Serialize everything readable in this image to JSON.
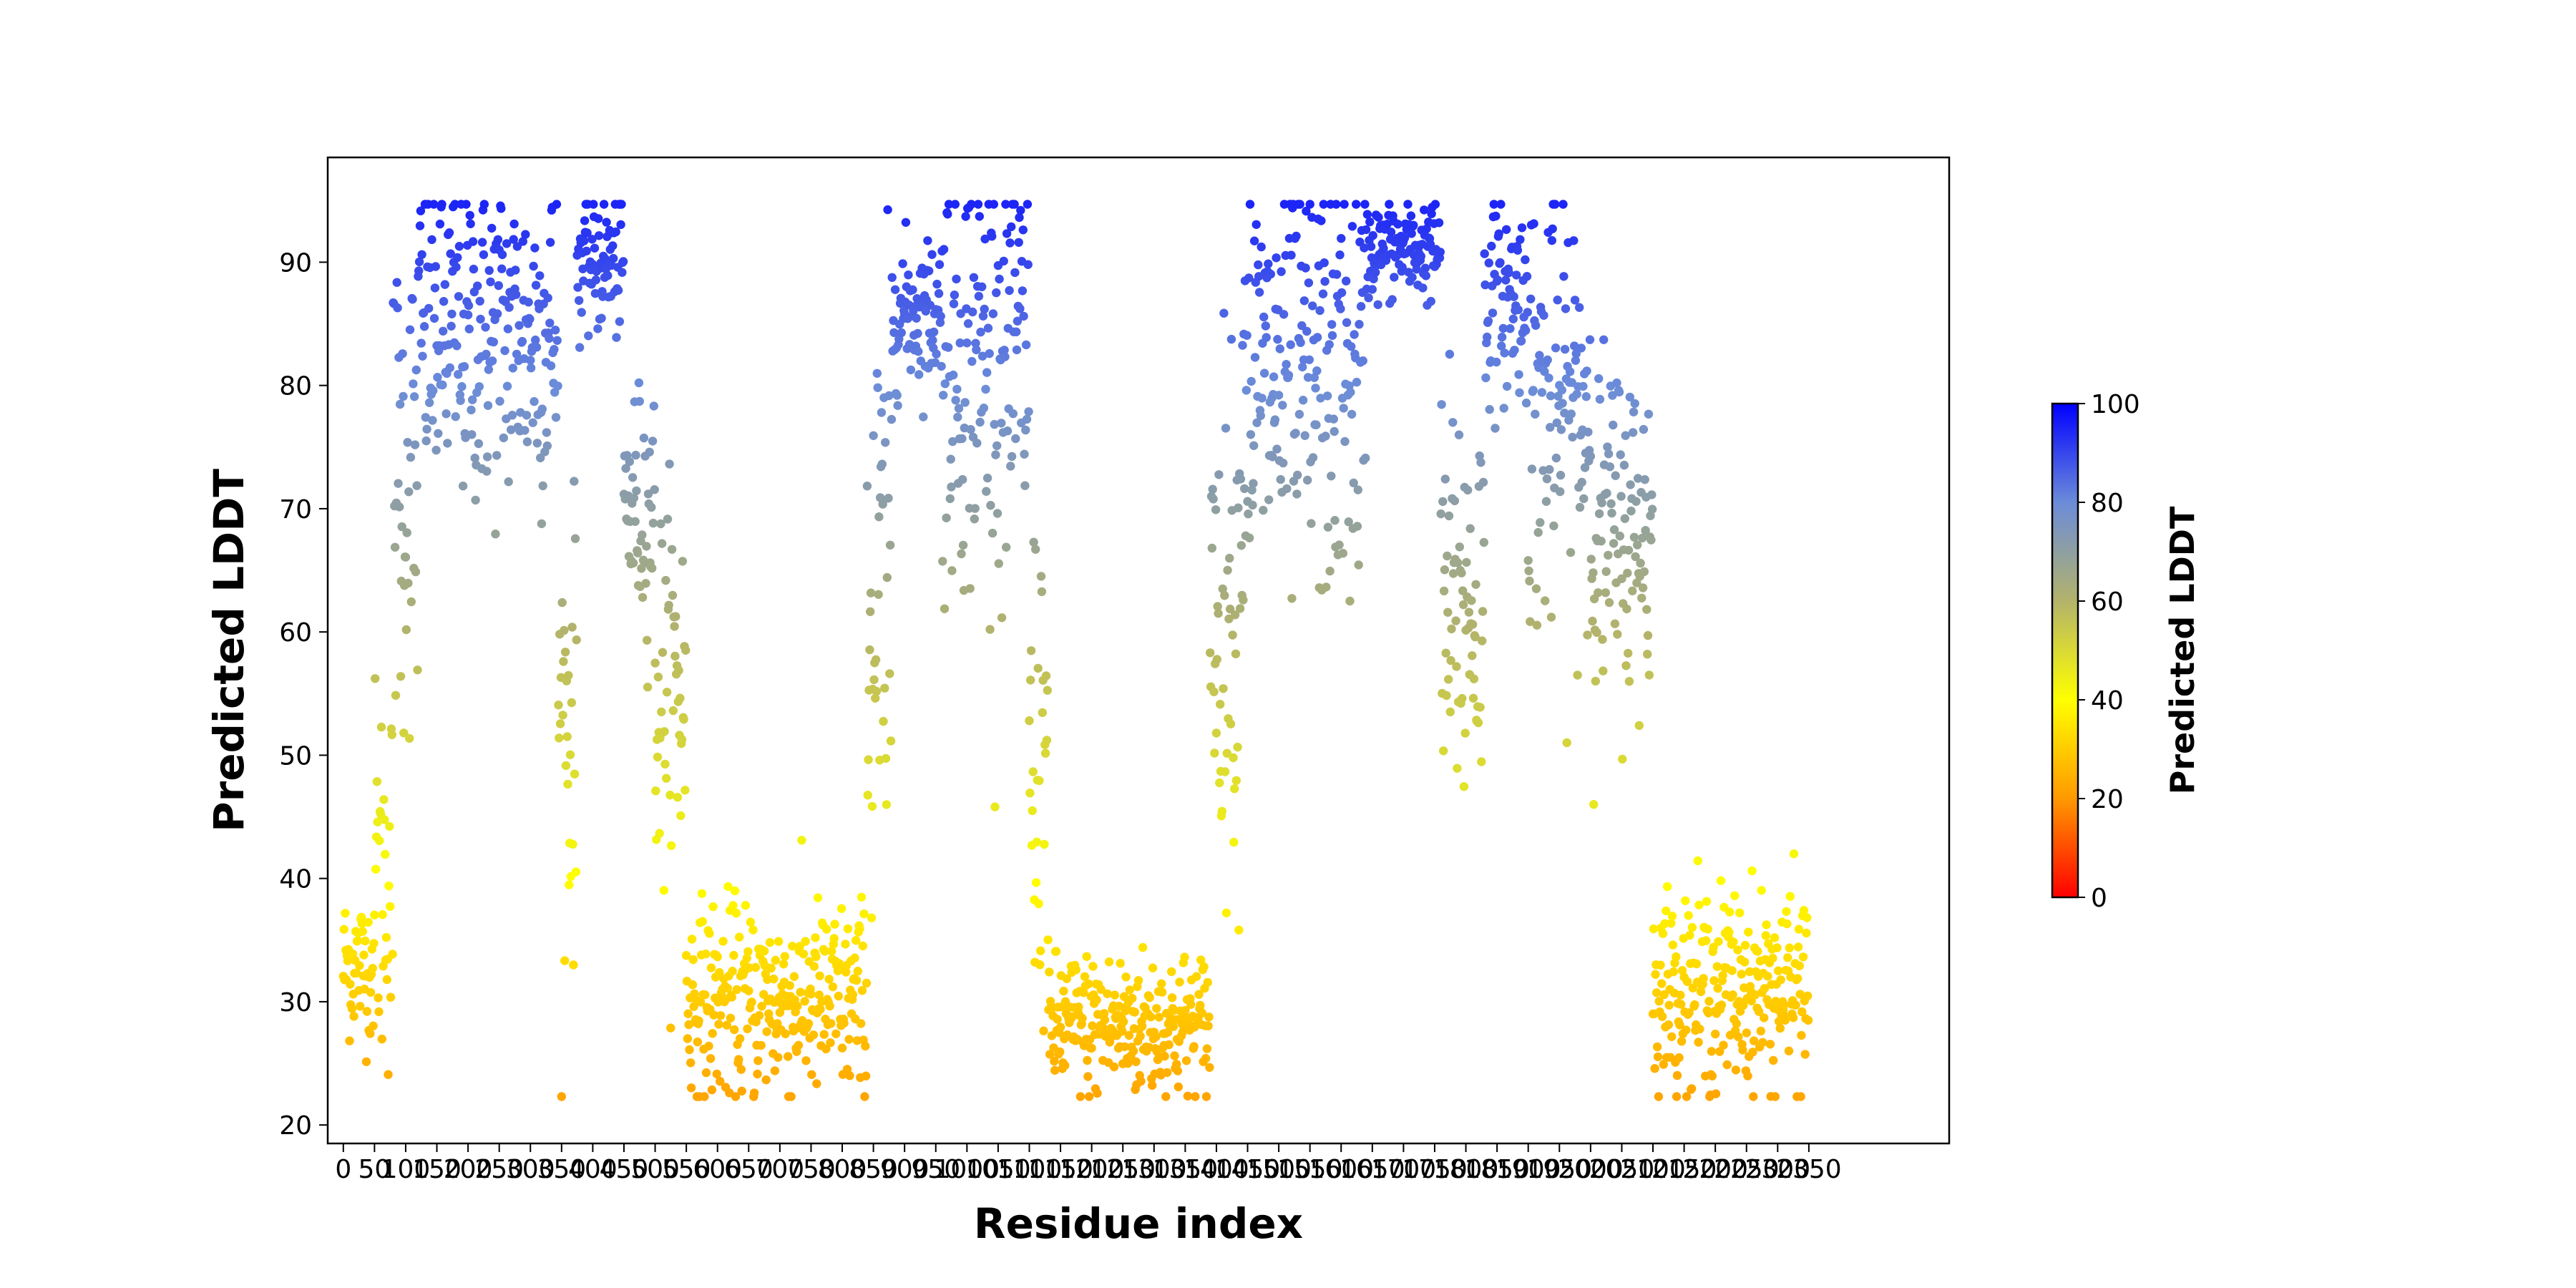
{
  "chart_data": {
    "type": "scatter",
    "xlabel": "Residue index",
    "ylabel": "Predicted LDDT",
    "xlim": [
      -25,
      2575
    ],
    "ylim": [
      18.5,
      98.5
    ],
    "x_ticks": [
      0,
      50,
      100,
      150,
      200,
      250,
      300,
      350,
      400,
      450,
      500,
      550,
      600,
      650,
      700,
      750,
      800,
      850,
      900,
      950,
      1000,
      1050,
      1100,
      1150,
      1200,
      1250,
      1300,
      1350,
      1400,
      1450,
      1500,
      1550,
      1600,
      1650,
      1700,
      1750,
      1800,
      1850,
      1900,
      1950,
      2000,
      2050,
      2100,
      2150,
      2200,
      2250,
      2300,
      2350
    ],
    "x_tick_labels": [
      "0",
      "50",
      "100",
      "150",
      "200",
      "250",
      "300",
      "350",
      "400",
      "450",
      "500",
      "550",
      "600",
      "650",
      "700",
      "750",
      "800",
      "850",
      "900",
      "950",
      "1000",
      "1050",
      "1100",
      "1150",
      "1200",
      "1250",
      "1300",
      "1350",
      "1400",
      "1450",
      "1500",
      "1550",
      "1600",
      "1650",
      "1700",
      "1750",
      "1800",
      "1850",
      "1900",
      "1950",
      "2000",
      "2050",
      "2100",
      "2150",
      "2200",
      "2250",
      "2300",
      "2350"
    ],
    "y_ticks": [
      20,
      30,
      40,
      50,
      60,
      70,
      80,
      90
    ],
    "y_tick_labels": [
      "20",
      "30",
      "40",
      "50",
      "60",
      "70",
      "80",
      "90"
    ],
    "grid": false,
    "colorbar": {
      "label": "Predicted LDDT",
      "range": [
        0,
        100
      ],
      "ticks": [
        0,
        20,
        40,
        60,
        80,
        100
      ],
      "tick_labels": [
        "0",
        "20",
        "40",
        "60",
        "80",
        "100"
      ],
      "colormap_stops": [
        {
          "value": 0,
          "color": "#ff0000"
        },
        {
          "value": 20,
          "color": "#ff9900"
        },
        {
          "value": 40,
          "color": "#ffff00"
        },
        {
          "value": 60,
          "color": "#b3b36b"
        },
        {
          "value": 80,
          "color": "#6b8cd9"
        },
        {
          "value": 100,
          "color": "#0000ff"
        }
      ]
    },
    "segments": [
      {
        "start": 0,
        "end": 50,
        "mean": 33,
        "spread": 3
      },
      {
        "start": 50,
        "end": 80,
        "mean": 40,
        "spread": 8
      },
      {
        "start": 80,
        "end": 120,
        "mean": 72,
        "spread": 10
      },
      {
        "start": 120,
        "end": 345,
        "mean": 84,
        "spread": 7
      },
      {
        "start": 345,
        "end": 375,
        "mean": 52,
        "spread": 9
      },
      {
        "start": 375,
        "end": 450,
        "mean": 90,
        "spread": 3
      },
      {
        "start": 450,
        "end": 500,
        "mean": 70,
        "spread": 5
      },
      {
        "start": 500,
        "end": 550,
        "mean": 55,
        "spread": 8
      },
      {
        "start": 550,
        "end": 840,
        "mean": 30,
        "spread": 4
      },
      {
        "start": 840,
        "end": 880,
        "mean": 60,
        "spread": 14
      },
      {
        "start": 880,
        "end": 960,
        "mean": 86,
        "spread": 3
      },
      {
        "start": 960,
        "end": 1100,
        "mean": 82,
        "spread": 9
      },
      {
        "start": 1100,
        "end": 1130,
        "mean": 50,
        "spread": 10
      },
      {
        "start": 1130,
        "end": 1390,
        "mean": 28,
        "spread": 3
      },
      {
        "start": 1390,
        "end": 1440,
        "mean": 62,
        "spread": 10
      },
      {
        "start": 1440,
        "end": 1640,
        "mean": 80,
        "spread": 9
      },
      {
        "start": 1640,
        "end": 1760,
        "mean": 91,
        "spread": 2
      },
      {
        "start": 1760,
        "end": 1830,
        "mean": 62,
        "spread": 9
      },
      {
        "start": 1830,
        "end": 1900,
        "mean": 87,
        "spread": 4
      },
      {
        "start": 1900,
        "end": 2000,
        "mean": 78,
        "spread": 9
      },
      {
        "start": 2000,
        "end": 2100,
        "mean": 68,
        "spread": 7
      },
      {
        "start": 2100,
        "end": 2350,
        "mean": 31,
        "spread": 4
      }
    ]
  }
}
